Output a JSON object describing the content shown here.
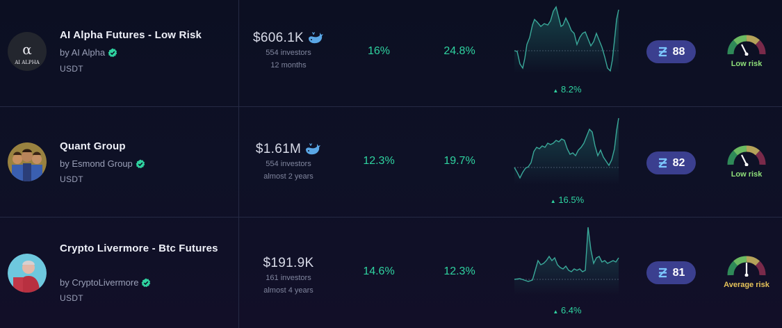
{
  "colors": {
    "positive": "#2fd3a0",
    "score_bg": "#3b3f8f",
    "low_risk": "#8fe07a",
    "average_risk": "#e6c35a"
  },
  "rows": [
    {
      "name": "AI Alpha Futures - Low Risk",
      "by": "by AI Alpha",
      "currency": "USDT",
      "avatar_text_symbol": "α",
      "avatar_text": "AI ALPHA",
      "aum": "$606.1K",
      "aum_icon": "whale-icon",
      "investors": "554 investors",
      "duration": "12 months",
      "pct_a": "16%",
      "pct_b": "24.8%",
      "change": "8.2%",
      "score": "88",
      "risk_label": "Low risk",
      "risk_level": 0.2
    },
    {
      "name": "Quant Group",
      "by": "by Esmond Group",
      "currency": "USDT",
      "aum": "$1.61M",
      "aum_icon": "whale-icon",
      "investors": "554 investors",
      "duration": "almost 2 years",
      "pct_a": "12.3%",
      "pct_b": "19.7%",
      "change": "16.5%",
      "score": "82",
      "risk_label": "Low risk",
      "risk_level": 0.2
    },
    {
      "name": "Crypto Livermore - Btc Futures",
      "by": "by CryptoLivermore",
      "currency": "USDT",
      "aum": "$191.9K",
      "investors": "161 investors",
      "duration": "almost 4 years",
      "pct_a": "14.6%",
      "pct_b": "12.3%",
      "change": "6.4%",
      "score": "81",
      "risk_label": "Average risk",
      "risk_level": 0.5
    }
  ]
}
